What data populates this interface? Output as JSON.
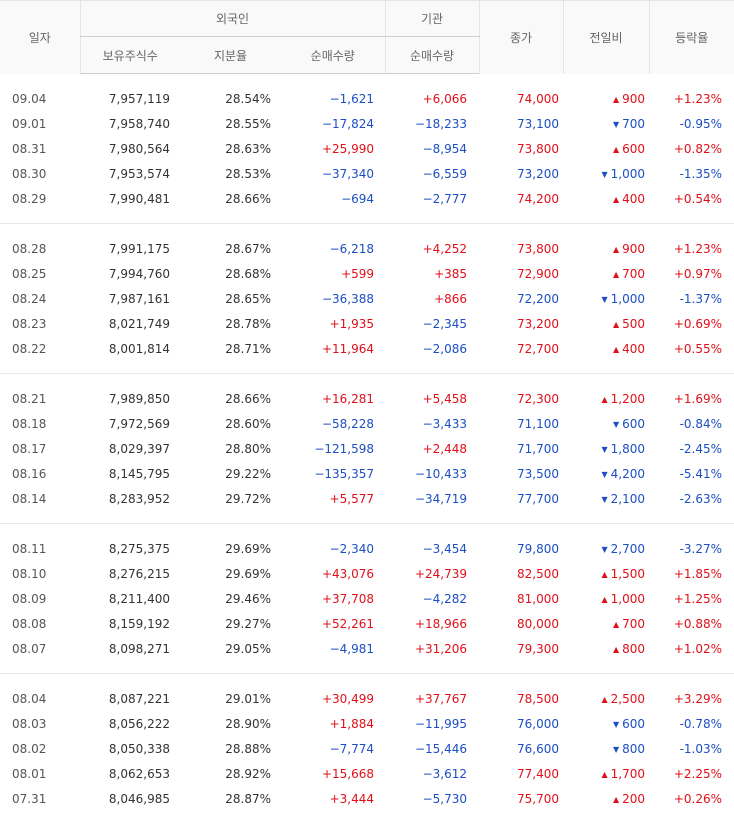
{
  "header": {
    "date": "일자",
    "foreign": "외국인",
    "institution": "기관",
    "close": "종가",
    "change": "전일비",
    "rate": "등락율",
    "holdings": "보유주식수",
    "ratio": "지분율",
    "foreign_net": "순매수량",
    "inst_net": "순매수량"
  },
  "groups": [
    [
      {
        "date": "09.04",
        "holdings": "7,957,119",
        "ratio": "28.54%",
        "foreign_net": "−1,621",
        "foreign_dir": "down",
        "inst_net": "+6,066",
        "inst_dir": "up",
        "close": "74,000",
        "close_dir": "up",
        "arrow": "▲",
        "change": "900",
        "change_dir": "up",
        "rate": "+1.23%",
        "rate_dir": "up"
      },
      {
        "date": "09.01",
        "holdings": "7,958,740",
        "ratio": "28.55%",
        "foreign_net": "−17,824",
        "foreign_dir": "down",
        "inst_net": "−18,233",
        "inst_dir": "down",
        "close": "73,100",
        "close_dir": "down",
        "arrow": "▼",
        "change": "700",
        "change_dir": "down",
        "rate": "-0.95%",
        "rate_dir": "down"
      },
      {
        "date": "08.31",
        "holdings": "7,980,564",
        "ratio": "28.63%",
        "foreign_net": "+25,990",
        "foreign_dir": "up",
        "inst_net": "−8,954",
        "inst_dir": "down",
        "close": "73,800",
        "close_dir": "up",
        "arrow": "▲",
        "change": "600",
        "change_dir": "up",
        "rate": "+0.82%",
        "rate_dir": "up"
      },
      {
        "date": "08.30",
        "holdings": "7,953,574",
        "ratio": "28.53%",
        "foreign_net": "−37,340",
        "foreign_dir": "down",
        "inst_net": "−6,559",
        "inst_dir": "down",
        "close": "73,200",
        "close_dir": "down",
        "arrow": "▼",
        "change": "1,000",
        "change_dir": "down",
        "rate": "-1.35%",
        "rate_dir": "down"
      },
      {
        "date": "08.29",
        "holdings": "7,990,481",
        "ratio": "28.66%",
        "foreign_net": "−694",
        "foreign_dir": "down",
        "inst_net": "−2,777",
        "inst_dir": "down",
        "close": "74,200",
        "close_dir": "up",
        "arrow": "▲",
        "change": "400",
        "change_dir": "up",
        "rate": "+0.54%",
        "rate_dir": "up"
      }
    ],
    [
      {
        "date": "08.28",
        "holdings": "7,991,175",
        "ratio": "28.67%",
        "foreign_net": "−6,218",
        "foreign_dir": "down",
        "inst_net": "+4,252",
        "inst_dir": "up",
        "close": "73,800",
        "close_dir": "up",
        "arrow": "▲",
        "change": "900",
        "change_dir": "up",
        "rate": "+1.23%",
        "rate_dir": "up"
      },
      {
        "date": "08.25",
        "holdings": "7,994,760",
        "ratio": "28.68%",
        "foreign_net": "+599",
        "foreign_dir": "up",
        "inst_net": "+385",
        "inst_dir": "up",
        "close": "72,900",
        "close_dir": "up",
        "arrow": "▲",
        "change": "700",
        "change_dir": "up",
        "rate": "+0.97%",
        "rate_dir": "up"
      },
      {
        "date": "08.24",
        "holdings": "7,987,161",
        "ratio": "28.65%",
        "foreign_net": "−36,388",
        "foreign_dir": "down",
        "inst_net": "+866",
        "inst_dir": "up",
        "close": "72,200",
        "close_dir": "down",
        "arrow": "▼",
        "change": "1,000",
        "change_dir": "down",
        "rate": "-1.37%",
        "rate_dir": "down"
      },
      {
        "date": "08.23",
        "holdings": "8,021,749",
        "ratio": "28.78%",
        "foreign_net": "+1,935",
        "foreign_dir": "up",
        "inst_net": "−2,345",
        "inst_dir": "down",
        "close": "73,200",
        "close_dir": "up",
        "arrow": "▲",
        "change": "500",
        "change_dir": "up",
        "rate": "+0.69%",
        "rate_dir": "up"
      },
      {
        "date": "08.22",
        "holdings": "8,001,814",
        "ratio": "28.71%",
        "foreign_net": "+11,964",
        "foreign_dir": "up",
        "inst_net": "−2,086",
        "inst_dir": "down",
        "close": "72,700",
        "close_dir": "up",
        "arrow": "▲",
        "change": "400",
        "change_dir": "up",
        "rate": "+0.55%",
        "rate_dir": "up"
      }
    ],
    [
      {
        "date": "08.21",
        "holdings": "7,989,850",
        "ratio": "28.66%",
        "foreign_net": "+16,281",
        "foreign_dir": "up",
        "inst_net": "+5,458",
        "inst_dir": "up",
        "close": "72,300",
        "close_dir": "up",
        "arrow": "▲",
        "change": "1,200",
        "change_dir": "up",
        "rate": "+1.69%",
        "rate_dir": "up"
      },
      {
        "date": "08.18",
        "holdings": "7,972,569",
        "ratio": "28.60%",
        "foreign_net": "−58,228",
        "foreign_dir": "down",
        "inst_net": "−3,433",
        "inst_dir": "down",
        "close": "71,100",
        "close_dir": "down",
        "arrow": "▼",
        "change": "600",
        "change_dir": "down",
        "rate": "-0.84%",
        "rate_dir": "down"
      },
      {
        "date": "08.17",
        "holdings": "8,029,397",
        "ratio": "28.80%",
        "foreign_net": "−121,598",
        "foreign_dir": "down",
        "inst_net": "+2,448",
        "inst_dir": "up",
        "close": "71,700",
        "close_dir": "down",
        "arrow": "▼",
        "change": "1,800",
        "change_dir": "down",
        "rate": "-2.45%",
        "rate_dir": "down"
      },
      {
        "date": "08.16",
        "holdings": "8,145,795",
        "ratio": "29.22%",
        "foreign_net": "−135,357",
        "foreign_dir": "down",
        "inst_net": "−10,433",
        "inst_dir": "down",
        "close": "73,500",
        "close_dir": "down",
        "arrow": "▼",
        "change": "4,200",
        "change_dir": "down",
        "rate": "-5.41%",
        "rate_dir": "down"
      },
      {
        "date": "08.14",
        "holdings": "8,283,952",
        "ratio": "29.72%",
        "foreign_net": "+5,577",
        "foreign_dir": "up",
        "inst_net": "−34,719",
        "inst_dir": "down",
        "close": "77,700",
        "close_dir": "down",
        "arrow": "▼",
        "change": "2,100",
        "change_dir": "down",
        "rate": "-2.63%",
        "rate_dir": "down"
      }
    ],
    [
      {
        "date": "08.11",
        "holdings": "8,275,375",
        "ratio": "29.69%",
        "foreign_net": "−2,340",
        "foreign_dir": "down",
        "inst_net": "−3,454",
        "inst_dir": "down",
        "close": "79,800",
        "close_dir": "down",
        "arrow": "▼",
        "change": "2,700",
        "change_dir": "down",
        "rate": "-3.27%",
        "rate_dir": "down"
      },
      {
        "date": "08.10",
        "holdings": "8,276,215",
        "ratio": "29.69%",
        "foreign_net": "+43,076",
        "foreign_dir": "up",
        "inst_net": "+24,739",
        "inst_dir": "up",
        "close": "82,500",
        "close_dir": "up",
        "arrow": "▲",
        "change": "1,500",
        "change_dir": "up",
        "rate": "+1.85%",
        "rate_dir": "up"
      },
      {
        "date": "08.09",
        "holdings": "8,211,400",
        "ratio": "29.46%",
        "foreign_net": "+37,708",
        "foreign_dir": "up",
        "inst_net": "−4,282",
        "inst_dir": "down",
        "close": "81,000",
        "close_dir": "up",
        "arrow": "▲",
        "change": "1,000",
        "change_dir": "up",
        "rate": "+1.25%",
        "rate_dir": "up"
      },
      {
        "date": "08.08",
        "holdings": "8,159,192",
        "ratio": "29.27%",
        "foreign_net": "+52,261",
        "foreign_dir": "up",
        "inst_net": "+18,966",
        "inst_dir": "up",
        "close": "80,000",
        "close_dir": "up",
        "arrow": "▲",
        "change": "700",
        "change_dir": "up",
        "rate": "+0.88%",
        "rate_dir": "up"
      },
      {
        "date": "08.07",
        "holdings": "8,098,271",
        "ratio": "29.05%",
        "foreign_net": "−4,981",
        "foreign_dir": "down",
        "inst_net": "+31,206",
        "inst_dir": "up",
        "close": "79,300",
        "close_dir": "up",
        "arrow": "▲",
        "change": "800",
        "change_dir": "up",
        "rate": "+1.02%",
        "rate_dir": "up"
      }
    ],
    [
      {
        "date": "08.04",
        "holdings": "8,087,221",
        "ratio": "29.01%",
        "foreign_net": "+30,499",
        "foreign_dir": "up",
        "inst_net": "+37,767",
        "inst_dir": "up",
        "close": "78,500",
        "close_dir": "up",
        "arrow": "▲",
        "change": "2,500",
        "change_dir": "up",
        "rate": "+3.29%",
        "rate_dir": "up"
      },
      {
        "date": "08.03",
        "holdings": "8,056,222",
        "ratio": "28.90%",
        "foreign_net": "+1,884",
        "foreign_dir": "up",
        "inst_net": "−11,995",
        "inst_dir": "down",
        "close": "76,000",
        "close_dir": "down",
        "arrow": "▼",
        "change": "600",
        "change_dir": "down",
        "rate": "-0.78%",
        "rate_dir": "down"
      },
      {
        "date": "08.02",
        "holdings": "8,050,338",
        "ratio": "28.88%",
        "foreign_net": "−7,774",
        "foreign_dir": "down",
        "inst_net": "−15,446",
        "inst_dir": "down",
        "close": "76,600",
        "close_dir": "down",
        "arrow": "▼",
        "change": "800",
        "change_dir": "down",
        "rate": "-1.03%",
        "rate_dir": "down"
      },
      {
        "date": "08.01",
        "holdings": "8,062,653",
        "ratio": "28.92%",
        "foreign_net": "+15,668",
        "foreign_dir": "up",
        "inst_net": "−3,612",
        "inst_dir": "down",
        "close": "77,400",
        "close_dir": "up",
        "arrow": "▲",
        "change": "1,700",
        "change_dir": "up",
        "rate": "+2.25%",
        "rate_dir": "up"
      },
      {
        "date": "07.31",
        "holdings": "8,046,985",
        "ratio": "28.87%",
        "foreign_net": "+3,444",
        "foreign_dir": "up",
        "inst_net": "−5,730",
        "inst_dir": "down",
        "close": "75,700",
        "close_dir": "up",
        "arrow": "▲",
        "change": "200",
        "change_dir": "up",
        "rate": "+0.26%",
        "rate_dir": "up"
      }
    ]
  ]
}
